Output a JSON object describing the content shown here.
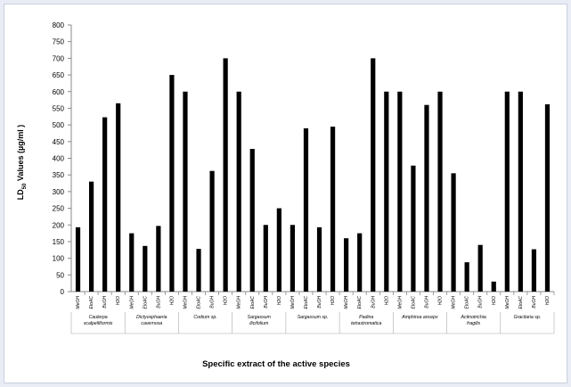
{
  "chart_data": {
    "type": "bar",
    "ylabel_main": "LD",
    "ylabel_sub": "50",
    "ylabel_rest": " Values (µg/ml )",
    "xlabel": "Specific extract of the active species",
    "ylim": [
      0,
      800
    ],
    "yticks": [
      0,
      50,
      100,
      150,
      200,
      250,
      300,
      350,
      400,
      450,
      500,
      550,
      600,
      650,
      700,
      750,
      800
    ],
    "bar_color": "#000000",
    "groups": [
      {
        "name": [
          "Caulerpa",
          "scalpelliformis"
        ],
        "categories": [
          "MeOH",
          "EtoAC",
          "BuOH",
          "H2O"
        ],
        "values": [
          193,
          330,
          523,
          565
        ]
      },
      {
        "name": [
          "Dictyosphaeria",
          "cavernosa"
        ],
        "categories": [
          "MeOH",
          "EtoAC",
          "BuOH",
          "H2O"
        ],
        "values": [
          175,
          137,
          197,
          650
        ]
      },
      {
        "name": [
          "Codium sp."
        ],
        "categories": [
          "MeOH",
          "EtoAC",
          "BuOH",
          "H2O"
        ],
        "values": [
          600,
          128,
          362,
          700
        ]
      },
      {
        "name": [
          "Sargassum",
          "ilicifolium"
        ],
        "categories": [
          "MeOH",
          "EtoAC",
          "BuOH",
          "H2O"
        ],
        "values": [
          600,
          428,
          200,
          250
        ]
      },
      {
        "name": [
          "Sargassum sp."
        ],
        "categories": [
          "MeOH",
          "EtoAC",
          "BuOH",
          "H2O"
        ],
        "values": [
          200,
          490,
          193,
          495
        ]
      },
      {
        "name": [
          "Padina",
          "tetrastromatica"
        ],
        "categories": [
          "MeOH",
          "EtoAC",
          "BuOH",
          "H2O"
        ],
        "values": [
          160,
          175,
          700,
          600
        ]
      },
      {
        "name": [
          "Amphiroa anceps"
        ],
        "categories": [
          "MeOH",
          "EtoAC",
          "BuOH",
          "H2O"
        ],
        "values": [
          600,
          378,
          560,
          600
        ]
      },
      {
        "name": [
          "Actinotrichia",
          "fragilis"
        ],
        "categories": [
          "MeOH",
          "EtoAC",
          "BuOH",
          "H2O"
        ],
        "values": [
          355,
          88,
          140,
          30
        ]
      },
      {
        "name": [
          "Gracilaria sp."
        ],
        "categories": [
          "MeOH",
          "EtoAC",
          "BuOH",
          "H2O"
        ],
        "values": [
          600,
          600,
          127,
          562
        ]
      }
    ]
  }
}
